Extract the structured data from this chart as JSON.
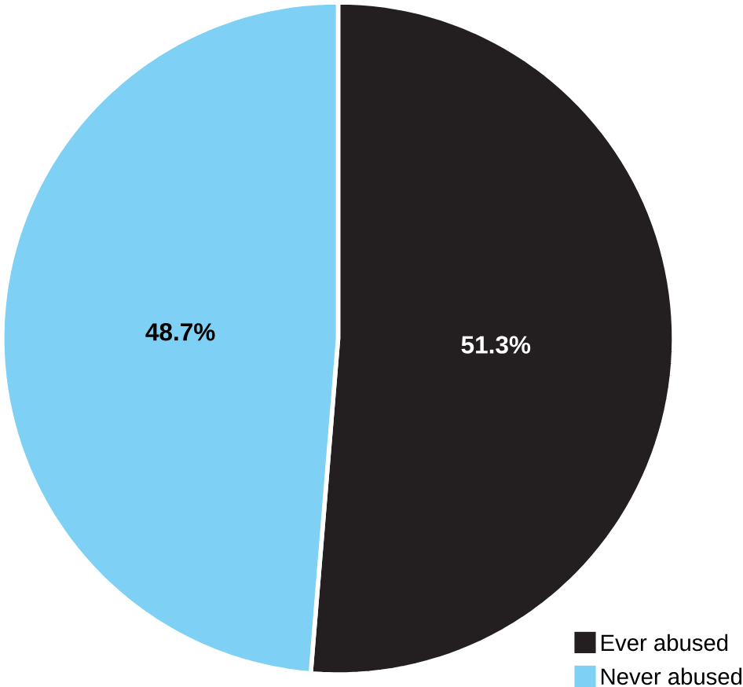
{
  "chart_data": {
    "type": "pie",
    "categories": [
      "Ever abused",
      "Never abused"
    ],
    "values": [
      51.3,
      48.7
    ],
    "colors": [
      "#231f20",
      "#7fd0f5"
    ],
    "value_labels": [
      "51.3%",
      "48.7%"
    ],
    "legend": "bottom right"
  }
}
